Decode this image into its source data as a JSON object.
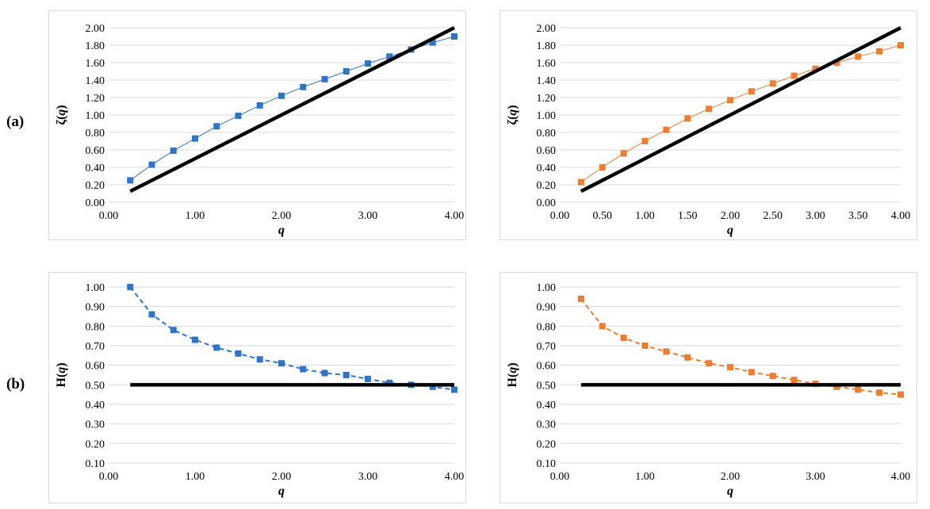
{
  "row_labels": {
    "a": "(a)",
    "b": "(b)"
  },
  "chart_data": [
    {
      "id": "a-left",
      "type": "scatter",
      "xlabel_prefix": "",
      "xlabel_var": "q",
      "xlabel_suffix": "",
      "ylabel_prefix": "ζ(",
      "ylabel_var": "q",
      "ylabel_suffix": ")",
      "xlim": [
        0,
        4
      ],
      "ylim": [
        0,
        2
      ],
      "xticks": [
        0,
        1,
        2,
        3,
        4
      ],
      "xtick_labels": [
        "0.00",
        "1.00",
        "2.00",
        "3.00",
        "4.00"
      ],
      "yticks": [
        0,
        0.2,
        0.4,
        0.6,
        0.8,
        1.0,
        1.2,
        1.4,
        1.6,
        1.8,
        2.0
      ],
      "ytick_labels": [
        "0.00",
        "0.20",
        "0.40",
        "0.60",
        "0.80",
        "1.00",
        "1.20",
        "1.40",
        "1.60",
        "1.80",
        "2.00"
      ],
      "grid": true,
      "series": [
        {
          "name": "ζ(q)",
          "color": "#2e75c8",
          "line": "solid",
          "x": [
            0.25,
            0.5,
            0.75,
            1.0,
            1.25,
            1.5,
            1.75,
            2.0,
            2.25,
            2.5,
            2.75,
            3.0,
            3.25,
            3.5,
            3.75,
            4.0
          ],
          "y": [
            0.25,
            0.43,
            0.59,
            0.73,
            0.87,
            0.99,
            1.11,
            1.22,
            1.32,
            1.41,
            1.5,
            1.59,
            1.67,
            1.75,
            1.83,
            1.9
          ]
        },
        {
          "name": "reference",
          "color": "#000000",
          "line": "thick",
          "markers": false,
          "x": [
            0.25,
            4.0
          ],
          "y": [
            0.125,
            2.0
          ]
        }
      ]
    },
    {
      "id": "a-right",
      "type": "scatter",
      "xlabel_prefix": "",
      "xlabel_var": "q",
      "xlabel_suffix": "",
      "ylabel_prefix": "ζ(",
      "ylabel_var": "q",
      "ylabel_suffix": ")",
      "xlim": [
        0,
        4
      ],
      "ylim": [
        0,
        2
      ],
      "xticks": [
        0,
        0.5,
        1,
        1.5,
        2,
        2.5,
        3,
        3.5,
        4
      ],
      "xtick_labels": [
        "0.00",
        "0.50",
        "1.00",
        "1.50",
        "2.00",
        "2.50",
        "3.00",
        "3.50",
        "4.00"
      ],
      "yticks": [
        0,
        0.2,
        0.4,
        0.6,
        0.8,
        1.0,
        1.2,
        1.4,
        1.6,
        1.8,
        2.0
      ],
      "ytick_labels": [
        "0.00",
        "0.20",
        "0.40",
        "0.60",
        "0.80",
        "1.00",
        "1.20",
        "1.40",
        "1.60",
        "1.80",
        "2.00"
      ],
      "grid": true,
      "series": [
        {
          "name": "ζ(q)",
          "color": "#ed7d31",
          "line": "solid",
          "x": [
            0.25,
            0.5,
            0.75,
            1.0,
            1.25,
            1.5,
            1.75,
            2.0,
            2.25,
            2.5,
            2.75,
            3.0,
            3.25,
            3.5,
            3.75,
            4.0
          ],
          "y": [
            0.23,
            0.4,
            0.56,
            0.7,
            0.83,
            0.96,
            1.07,
            1.17,
            1.27,
            1.36,
            1.45,
            1.53,
            1.6,
            1.67,
            1.73,
            1.8
          ]
        },
        {
          "name": "reference",
          "color": "#000000",
          "line": "thick",
          "markers": false,
          "x": [
            0.25,
            4.0
          ],
          "y": [
            0.125,
            2.0
          ]
        }
      ]
    },
    {
      "id": "b-left",
      "type": "scatter",
      "xlabel_prefix": "",
      "xlabel_var": "q",
      "xlabel_suffix": "",
      "ylabel_prefix": "H(",
      "ylabel_var": "q",
      "ylabel_suffix": ")",
      "xlim": [
        0,
        4
      ],
      "ylim": [
        0.1,
        1.0
      ],
      "xticks": [
        0,
        1,
        2,
        3,
        4
      ],
      "xtick_labels": [
        "0.00",
        "1.00",
        "2.00",
        "3.00",
        "4.00"
      ],
      "yticks": [
        0.1,
        0.2,
        0.3,
        0.4,
        0.5,
        0.6,
        0.7,
        0.8,
        0.9,
        1.0
      ],
      "ytick_labels": [
        "0.10",
        "0.20",
        "0.30",
        "0.40",
        "0.50",
        "0.60",
        "0.70",
        "0.80",
        "0.90",
        "1.00"
      ],
      "grid": true,
      "series": [
        {
          "name": "H(q)",
          "color": "#2e75c8",
          "line": "dashed",
          "x": [
            0.25,
            0.5,
            0.75,
            1.0,
            1.25,
            1.5,
            1.75,
            2.0,
            2.25,
            2.5,
            2.75,
            3.0,
            3.25,
            3.5,
            3.75,
            4.0
          ],
          "y": [
            1.0,
            0.86,
            0.78,
            0.73,
            0.69,
            0.66,
            0.63,
            0.61,
            0.58,
            0.56,
            0.55,
            0.53,
            0.51,
            0.5,
            0.49,
            0.475
          ]
        },
        {
          "name": "reference",
          "color": "#000000",
          "line": "thick",
          "markers": false,
          "x": [
            0.25,
            4.0
          ],
          "y": [
            0.5,
            0.5
          ]
        }
      ]
    },
    {
      "id": "b-right",
      "type": "scatter",
      "xlabel_prefix": "",
      "xlabel_var": "q",
      "xlabel_suffix": "",
      "ylabel_prefix": "H(",
      "ylabel_var": "q",
      "ylabel_suffix": ")",
      "xlim": [
        0,
        4
      ],
      "ylim": [
        0.1,
        1.0
      ],
      "xticks": [
        0,
        1,
        2,
        3,
        4
      ],
      "xtick_labels": [
        "0.00",
        "1.00",
        "2.00",
        "3.00",
        "4.00"
      ],
      "yticks": [
        0.1,
        0.2,
        0.3,
        0.4,
        0.5,
        0.6,
        0.7,
        0.8,
        0.9,
        1.0
      ],
      "ytick_labels": [
        "0.10",
        "0.20",
        "0.30",
        "0.40",
        "0.50",
        "0.60",
        "0.70",
        "0.80",
        "0.90",
        "1.00"
      ],
      "grid": true,
      "series": [
        {
          "name": "H(q)",
          "color": "#ed7d31",
          "line": "dashed",
          "x": [
            0.25,
            0.5,
            0.75,
            1.0,
            1.25,
            1.5,
            1.75,
            2.0,
            2.25,
            2.5,
            2.75,
            3.0,
            3.25,
            3.5,
            3.75,
            4.0
          ],
          "y": [
            0.94,
            0.8,
            0.74,
            0.7,
            0.67,
            0.64,
            0.61,
            0.59,
            0.565,
            0.545,
            0.525,
            0.505,
            0.49,
            0.475,
            0.46,
            0.45
          ]
        },
        {
          "name": "reference",
          "color": "#000000",
          "line": "thick",
          "markers": false,
          "x": [
            0.25,
            4.0
          ],
          "y": [
            0.5,
            0.5
          ]
        }
      ]
    }
  ]
}
